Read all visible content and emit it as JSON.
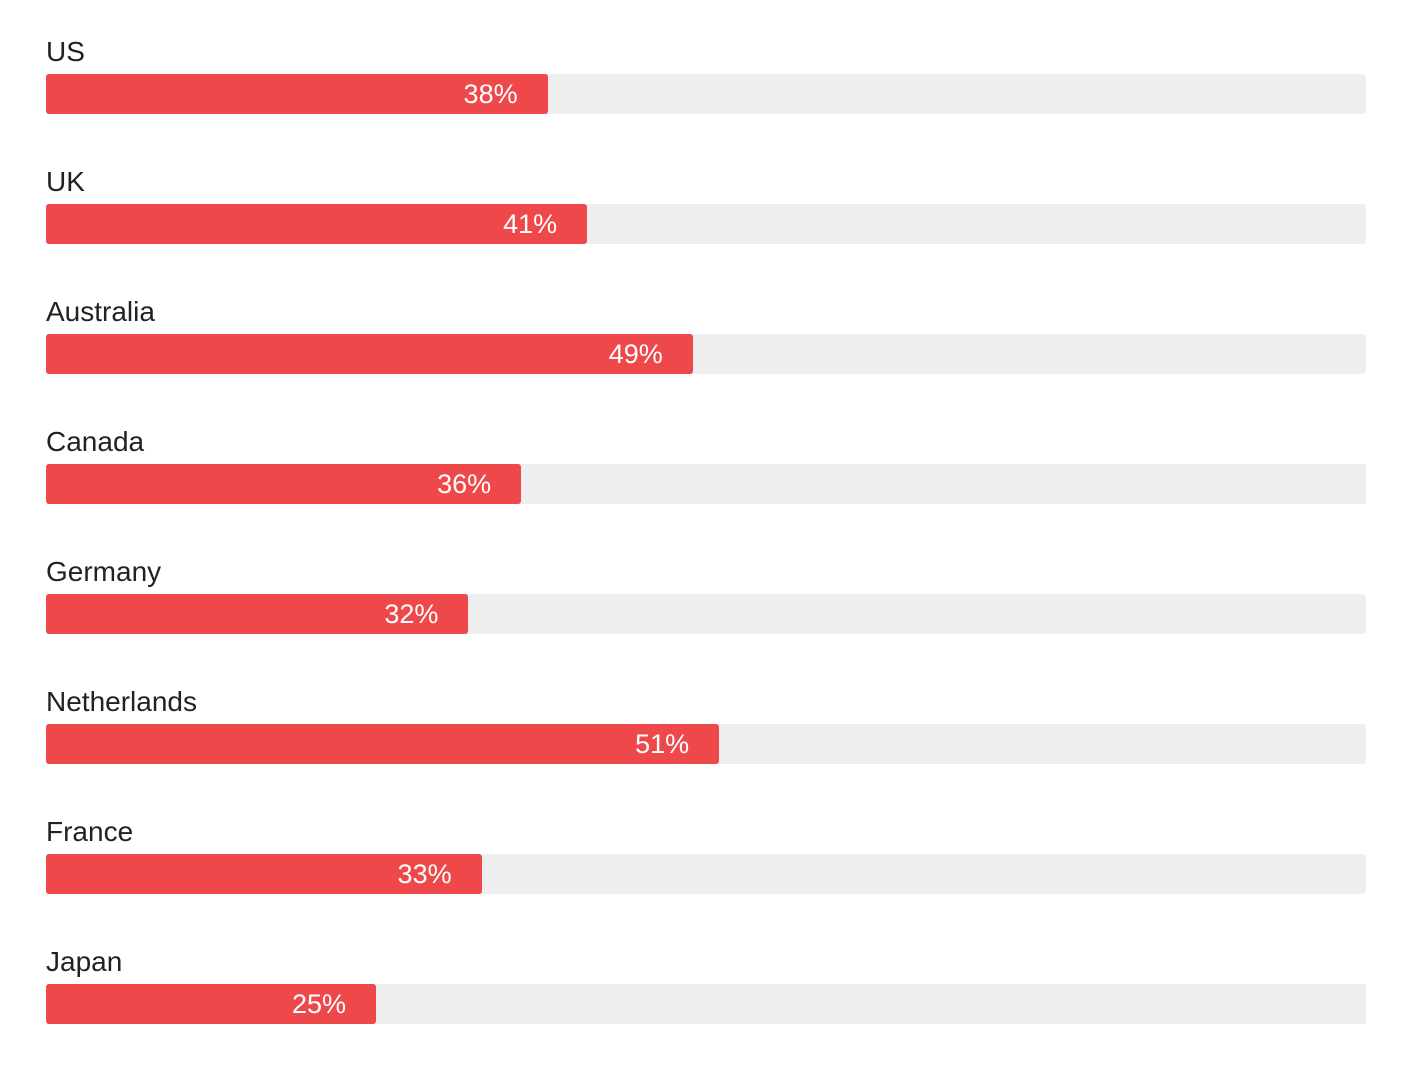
{
  "chart_data": {
    "type": "bar",
    "orientation": "horizontal",
    "categories": [
      "US",
      "UK",
      "Australia",
      "Canada",
      "Germany",
      "Netherlands",
      "France",
      "Japan"
    ],
    "values": [
      38,
      41,
      49,
      36,
      32,
      51,
      33,
      25
    ],
    "labels": [
      "38%",
      "41%",
      "49%",
      "36%",
      "32%",
      "51%",
      "33%",
      "25%"
    ],
    "title": "",
    "xlabel": "",
    "ylabel": "",
    "xlim": [
      0,
      100
    ],
    "colors": {
      "bar": "#ee484a",
      "track": "#eeeeee"
    }
  }
}
